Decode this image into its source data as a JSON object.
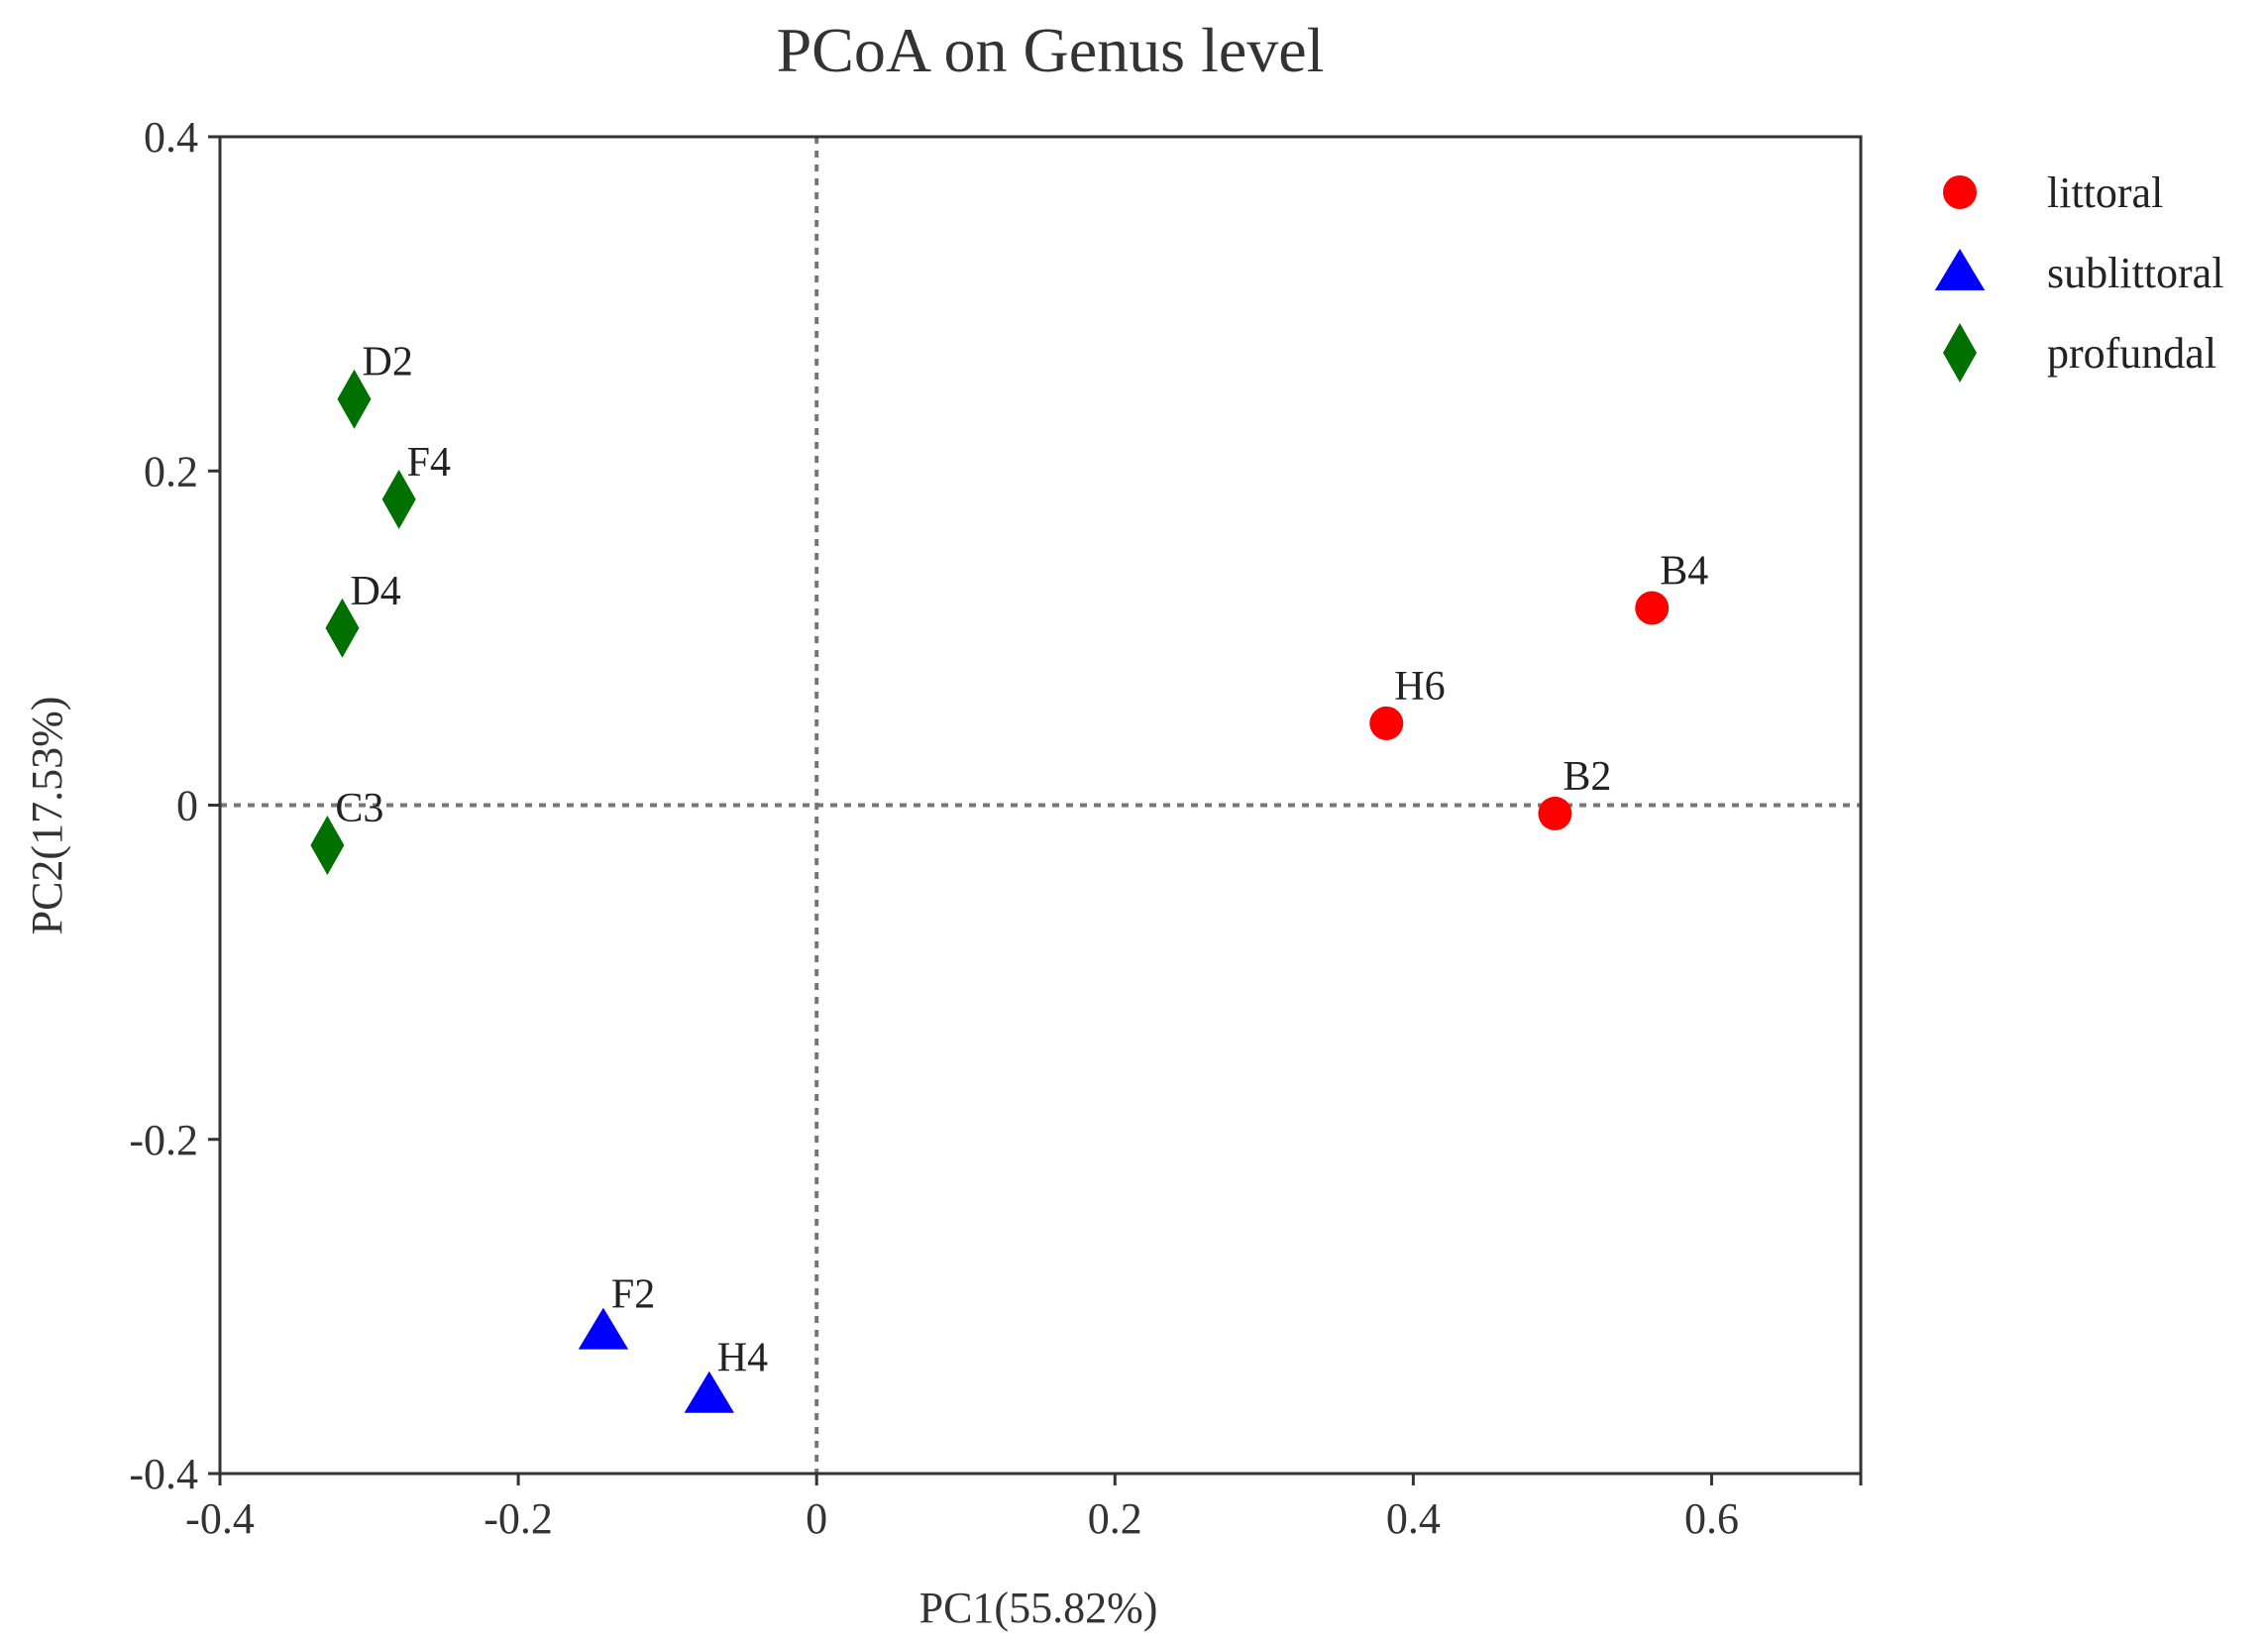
{
  "chart_data": {
    "type": "scatter",
    "title": "PCoA on Genus level",
    "xlabel": "PC1(55.82%)",
    "ylabel": "PC2(17.53%)",
    "xlim": [
      -0.4,
      0.7
    ],
    "ylim": [
      -0.4,
      0.4
    ],
    "xticks": [
      -0.4,
      -0.2,
      0,
      0.2,
      0.4,
      0.6
    ],
    "xtick_labels": [
      "-0.4",
      "-0.2",
      "0",
      "0.2",
      "0.4",
      "0.6"
    ],
    "yticks": [
      -0.4,
      -0.2,
      0,
      0.2,
      0.4
    ],
    "ytick_labels": [
      "-0.4",
      "-0.2",
      "0",
      "0.2",
      "0.4"
    ],
    "reference_lines": {
      "x": 0,
      "y": 0,
      "style": "dotted"
    },
    "legend_position": "right",
    "series": [
      {
        "name": "littoral",
        "marker": "circle",
        "color": "#ff0000",
        "points": [
          {
            "label": "B4",
            "x": 0.56,
            "y": 0.118
          },
          {
            "label": "H6",
            "x": 0.382,
            "y": 0.049
          },
          {
            "label": "B2",
            "x": 0.495,
            "y": -0.005
          }
        ]
      },
      {
        "name": "sublittoral",
        "marker": "triangle",
        "color": "#0000ff",
        "points": [
          {
            "label": "F2",
            "x": -0.143,
            "y": -0.315
          },
          {
            "label": "H4",
            "x": -0.072,
            "y": -0.353
          }
        ]
      },
      {
        "name": "profundal",
        "marker": "diamond",
        "color": "#007000",
        "points": [
          {
            "label": "D2",
            "x": -0.31,
            "y": 0.243
          },
          {
            "label": "F4",
            "x": -0.28,
            "y": 0.183
          },
          {
            "label": "D4",
            "x": -0.318,
            "y": 0.106
          },
          {
            "label": "C3",
            "x": -0.328,
            "y": -0.024
          }
        ]
      }
    ]
  }
}
